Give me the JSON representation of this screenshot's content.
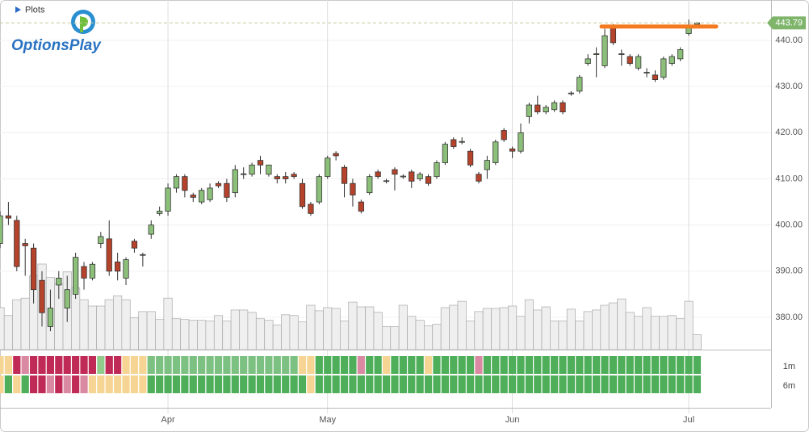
{
  "chart_data": {
    "type": "candlestick",
    "header": "Plots",
    "brand": "OptionsPlay",
    "ylim": [
      373,
      448.75
    ],
    "yticks": [
      {
        "value": 380,
        "label": "380.00"
      },
      {
        "value": 390,
        "label": "390.00"
      },
      {
        "value": 400,
        "label": "400.00"
      },
      {
        "value": 410,
        "label": "410.00"
      },
      {
        "value": 420,
        "label": "420.00"
      },
      {
        "value": 430,
        "label": "430.00"
      },
      {
        "value": 440,
        "label": "440.00"
      }
    ],
    "xlim": [
      0,
      91.8
    ],
    "xticks": [
      {
        "value": 20,
        "label": "Apr"
      },
      {
        "value": 39,
        "label": "May"
      },
      {
        "value": 61,
        "label": "Jun"
      },
      {
        "value": 82,
        "label": "Jul"
      }
    ],
    "up_color": "#8cc07a",
    "down_color": "#b5432c",
    "last_price": {
      "value": 443.79,
      "label": "443.79",
      "color": "#7fb56b"
    },
    "level": {
      "value": 443,
      "color": "#f47a20"
    },
    "candles": [
      {
        "open": 396,
        "high": 403,
        "low": 395,
        "close": 402
      },
      {
        "open": 402,
        "high": 405,
        "low": 400,
        "close": 401.5
      },
      {
        "open": 401,
        "high": 402,
        "low": 390,
        "close": 391
      },
      {
        "open": 396,
        "high": 397,
        "low": 389,
        "close": 395.5
      },
      {
        "open": 395,
        "high": 396,
        "low": 383,
        "close": 386
      },
      {
        "open": 388,
        "high": 390,
        "low": 378,
        "close": 381
      },
      {
        "open": 378,
        "high": 386,
        "low": 377,
        "close": 382
      },
      {
        "open": 387,
        "high": 390,
        "low": 384,
        "close": 388.5
      },
      {
        "open": 382,
        "high": 389,
        "low": 379,
        "close": 386
      },
      {
        "open": 385,
        "high": 394,
        "low": 384,
        "close": 393
      },
      {
        "open": 391,
        "high": 392,
        "low": 386,
        "close": 388.5
      },
      {
        "open": 388.5,
        "high": 392,
        "low": 388,
        "close": 391.5
      },
      {
        "open": 396,
        "high": 398.5,
        "low": 395,
        "close": 397.5
      },
      {
        "open": 397,
        "high": 401,
        "low": 389,
        "close": 390
      },
      {
        "open": 392,
        "high": 394,
        "low": 388,
        "close": 390
      },
      {
        "open": 388.5,
        "high": 393,
        "low": 387,
        "close": 392.5
      },
      {
        "open": 396.5,
        "high": 397,
        "low": 394,
        "close": 395
      },
      {
        "open": 393.5,
        "high": 394,
        "low": 391,
        "close": 393.6
      },
      {
        "open": 398,
        "high": 401,
        "low": 397,
        "close": 400
      },
      {
        "open": 402.5,
        "high": 404,
        "low": 402,
        "close": 403
      },
      {
        "open": 403,
        "high": 409,
        "low": 402,
        "close": 408
      },
      {
        "open": 408,
        "high": 411,
        "low": 407,
        "close": 410.5
      },
      {
        "open": 410.5,
        "high": 411,
        "low": 406,
        "close": 407.5
      },
      {
        "open": 406.5,
        "high": 407,
        "low": 405,
        "close": 406
      },
      {
        "open": 405,
        "high": 408,
        "low": 404.5,
        "close": 407.5
      },
      {
        "open": 405.5,
        "high": 409,
        "low": 405,
        "close": 408
      },
      {
        "open": 409,
        "high": 409.5,
        "low": 408,
        "close": 408.5
      },
      {
        "open": 409,
        "high": 410,
        "low": 405,
        "close": 406
      },
      {
        "open": 407,
        "high": 413,
        "low": 406,
        "close": 412
      },
      {
        "open": 411,
        "high": 412.5,
        "low": 410,
        "close": 411.1
      },
      {
        "open": 411,
        "high": 413.5,
        "low": 410.5,
        "close": 413
      },
      {
        "open": 414,
        "high": 415,
        "low": 411,
        "close": 413
      },
      {
        "open": 411,
        "high": 413,
        "low": 410.5,
        "close": 413
      },
      {
        "open": 410.5,
        "high": 411,
        "low": 409,
        "close": 410
      },
      {
        "open": 410.5,
        "high": 411.5,
        "low": 409,
        "close": 410
      },
      {
        "open": 411,
        "high": 411.5,
        "low": 410,
        "close": 410.5
      },
      {
        "open": 409,
        "high": 410,
        "low": 403.5,
        "close": 404
      },
      {
        "open": 404.5,
        "high": 405,
        "low": 402,
        "close": 402.5
      },
      {
        "open": 405,
        "high": 411,
        "low": 404.5,
        "close": 410.5
      },
      {
        "open": 410.5,
        "high": 415,
        "low": 410,
        "close": 414.5
      },
      {
        "open": 415.5,
        "high": 416,
        "low": 414,
        "close": 415
      },
      {
        "open": 412.5,
        "high": 413,
        "low": 406,
        "close": 409
      },
      {
        "open": 409,
        "high": 410,
        "low": 404,
        "close": 406.5
      },
      {
        "open": 405,
        "high": 405.5,
        "low": 402.5,
        "close": 403
      },
      {
        "open": 407,
        "high": 411,
        "low": 406.5,
        "close": 410.5
      },
      {
        "open": 411.5,
        "high": 412,
        "low": 410,
        "close": 410.5
      },
      {
        "open": 409.5,
        "high": 410,
        "low": 409,
        "close": 409.6
      },
      {
        "open": 412,
        "high": 412.5,
        "low": 407.5,
        "close": 411
      },
      {
        "open": 410.5,
        "high": 411,
        "low": 410,
        "close": 410.6
      },
      {
        "open": 411.5,
        "high": 412,
        "low": 408,
        "close": 409.5
      },
      {
        "open": 410,
        "high": 411.5,
        "low": 409.5,
        "close": 411
      },
      {
        "open": 410.5,
        "high": 411,
        "low": 408.5,
        "close": 409
      },
      {
        "open": 410.5,
        "high": 414,
        "low": 410,
        "close": 413.5
      },
      {
        "open": 413.5,
        "high": 418,
        "low": 413,
        "close": 417.5
      },
      {
        "open": 418.5,
        "high": 419,
        "low": 416.5,
        "close": 417
      },
      {
        "open": 418,
        "high": 419,
        "low": 417.5,
        "close": 418.1
      },
      {
        "open": 416,
        "high": 416.5,
        "low": 412.5,
        "close": 413
      },
      {
        "open": 411,
        "high": 411.5,
        "low": 409,
        "close": 409.5
      },
      {
        "open": 412,
        "high": 415,
        "low": 410,
        "close": 414
      },
      {
        "open": 413.5,
        "high": 418.5,
        "low": 413,
        "close": 418
      },
      {
        "open": 420.5,
        "high": 421,
        "low": 418,
        "close": 418.5
      },
      {
        "open": 416.5,
        "high": 417,
        "low": 414.5,
        "close": 416
      },
      {
        "open": 416,
        "high": 422,
        "low": 415.5,
        "close": 420
      },
      {
        "open": 423.5,
        "high": 426.5,
        "low": 422,
        "close": 426
      },
      {
        "open": 426,
        "high": 428,
        "low": 424,
        "close": 424.5
      },
      {
        "open": 424.5,
        "high": 426,
        "low": 424,
        "close": 425.5
      },
      {
        "open": 425,
        "high": 427,
        "low": 424.5,
        "close": 426.5
      },
      {
        "open": 426.5,
        "high": 427,
        "low": 424,
        "close": 424.5
      },
      {
        "open": 428.5,
        "high": 429,
        "low": 428,
        "close": 428.6
      },
      {
        "open": 429,
        "high": 432.5,
        "low": 428.5,
        "close": 432
      },
      {
        "open": 435,
        "high": 437,
        "low": 434.5,
        "close": 436
      },
      {
        "open": 437,
        "high": 438.5,
        "low": 432,
        "close": 437.1
      },
      {
        "open": 434.5,
        "high": 442.5,
        "low": 434,
        "close": 441
      },
      {
        "open": 443,
        "high": 443.5,
        "low": 439,
        "close": 439.5
      },
      {
        "open": 437,
        "high": 438,
        "low": 434.5,
        "close": 437.1
      },
      {
        "open": 436.5,
        "high": 437,
        "low": 434.5,
        "close": 435
      },
      {
        "open": 434,
        "high": 437,
        "low": 433.5,
        "close": 436.5
      },
      {
        "open": 433,
        "high": 434,
        "low": 432,
        "close": 433.1
      },
      {
        "open": 432.5,
        "high": 433.5,
        "low": 431,
        "close": 431.5
      },
      {
        "open": 432,
        "high": 436.5,
        "low": 431.5,
        "close": 436
      },
      {
        "open": 435,
        "high": 437,
        "low": 434.5,
        "close": 436.5
      },
      {
        "open": 436,
        "high": 438.5,
        "low": 435.5,
        "close": 438
      },
      {
        "open": 441.5,
        "high": 444.5,
        "low": 441,
        "close": 443
      },
      {
        "open": 443.5,
        "high": 444,
        "low": 443.5,
        "close": 443.79
      }
    ],
    "volume_lim": [
      0,
      110
    ],
    "volume": [
      53,
      43,
      63,
      65,
      93,
      108,
      91,
      83,
      98,
      78,
      63,
      55,
      55,
      63,
      68,
      63,
      40,
      48,
      48,
      38,
      65,
      39,
      38,
      37,
      37,
      36,
      43,
      36,
      50,
      50,
      47,
      39,
      37,
      31,
      44,
      43,
      35,
      56,
      49,
      53,
      52,
      36,
      60,
      54,
      54,
      47,
      29,
      29,
      56,
      42,
      37,
      30,
      32,
      53,
      56,
      61,
      36,
      48,
      52,
      52,
      53,
      55,
      42,
      63,
      50,
      54,
      36,
      36,
      51,
      36,
      48,
      50,
      56,
      59,
      64,
      47,
      42,
      53,
      42,
      42,
      43,
      39,
      61,
      19
    ],
    "rows": [
      {
        "name": "1m",
        "colors": [
          "#f6d594",
          "#f6d594",
          "#c02a57",
          "#d98aa2",
          "#c02a57",
          "#c02a57",
          "#c02a57",
          "#c02a57",
          "#c02a57",
          "#c02a57",
          "#c02a57",
          "#c02a57",
          "#8fcc8c",
          "#c02a57",
          "#c02a57",
          "#f6d594",
          "#f6d594",
          "#f6d594",
          "#7cc182",
          "#7cc182",
          "#7cc182",
          "#7cc182",
          "#7cc182",
          "#7cc182",
          "#7cc182",
          "#7cc182",
          "#7cc182",
          "#7cc182",
          "#7cc182",
          "#7cc182",
          "#7cc182",
          "#7cc182",
          "#7cc182",
          "#7cc182",
          "#7cc182",
          "#7cc182",
          "#f6d594",
          "#f6d594",
          "#4fae5a",
          "#4fae5a",
          "#4fae5a",
          "#4fae5a",
          "#4fae5a",
          "#d98aa2",
          "#4fae5a",
          "#4fae5a",
          "#f6d594",
          "#4fae5a",
          "#4fae5a",
          "#4fae5a",
          "#4fae5a",
          "#f6d594",
          "#4fae5a",
          "#4fae5a",
          "#4fae5a",
          "#4fae5a",
          "#4fae5a",
          "#d98aa2",
          "#4fae5a",
          "#4fae5a",
          "#4fae5a",
          "#4fae5a",
          "#4fae5a",
          "#4fae5a",
          "#4fae5a",
          "#4fae5a",
          "#4fae5a",
          "#4fae5a",
          "#4fae5a",
          "#4fae5a",
          "#4fae5a",
          "#4fae5a",
          "#4fae5a",
          "#4fae5a",
          "#4fae5a",
          "#4fae5a",
          "#4fae5a",
          "#4fae5a",
          "#4fae5a",
          "#4fae5a",
          "#4fae5a",
          "#4fae5a",
          "#4fae5a",
          "#4fae5a"
        ]
      },
      {
        "name": "6m",
        "colors": [
          "#f6d594",
          "#4fae5a",
          "#f6d594",
          "#4fae5a",
          "#c02a57",
          "#c02a57",
          "#d98aa2",
          "#c02a57",
          "#d98aa2",
          "#c02a57",
          "#d98aa2",
          "#f6d594",
          "#f6d594",
          "#f6d594",
          "#f6d594",
          "#f6d594",
          "#f6d594",
          "#f6d594",
          "#4fae5a",
          "#4fae5a",
          "#4fae5a",
          "#4fae5a",
          "#4fae5a",
          "#4fae5a",
          "#4fae5a",
          "#4fae5a",
          "#4fae5a",
          "#4fae5a",
          "#4fae5a",
          "#4fae5a",
          "#4fae5a",
          "#4fae5a",
          "#4fae5a",
          "#4fae5a",
          "#4fae5a",
          "#4fae5a",
          "#4fae5a",
          "#f6d594",
          "#4fae5a",
          "#4fae5a",
          "#4fae5a",
          "#4fae5a",
          "#4fae5a",
          "#4fae5a",
          "#4fae5a",
          "#4fae5a",
          "#4fae5a",
          "#4fae5a",
          "#4fae5a",
          "#4fae5a",
          "#4fae5a",
          "#4fae5a",
          "#4fae5a",
          "#4fae5a",
          "#4fae5a",
          "#4fae5a",
          "#4fae5a",
          "#4fae5a",
          "#4fae5a",
          "#4fae5a",
          "#4fae5a",
          "#4fae5a",
          "#4fae5a",
          "#4fae5a",
          "#4fae5a",
          "#4fae5a",
          "#4fae5a",
          "#4fae5a",
          "#4fae5a",
          "#4fae5a",
          "#4fae5a",
          "#4fae5a",
          "#4fae5a",
          "#4fae5a",
          "#4fae5a",
          "#4fae5a",
          "#4fae5a",
          "#4fae5a",
          "#4fae5a",
          "#4fae5a",
          "#4fae5a",
          "#4fae5a",
          "#4fae5a",
          "#4fae5a"
        ]
      }
    ]
  }
}
